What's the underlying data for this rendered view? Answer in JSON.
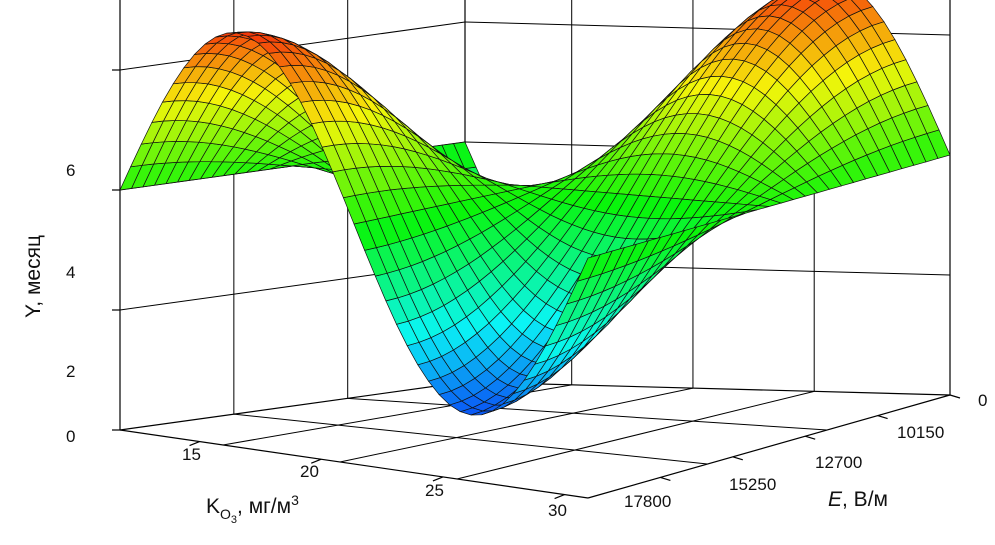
{
  "chart_data": {
    "type": "surface",
    "title": "",
    "zlabel": "Y, месяц",
    "zlim": [
      0,
      7.2
    ],
    "z_ticks": [
      "0",
      "2",
      "4",
      "6"
    ],
    "x_label": {
      "symbol": "K",
      "subscript": "O",
      "sub_subscript": "3",
      "units": ", мг/м",
      "superscript": "3"
    },
    "x_ticks": [
      "15",
      "20",
      "25",
      "30"
    ],
    "y_label": {
      "symbol": "E",
      "units": ", В/м"
    },
    "y_ticks": [
      "0",
      "10150",
      "12700",
      "15250",
      "17800"
    ],
    "grid": true,
    "colormap": "rainbow (blue low → red high)",
    "surface": {
      "description_units": "Y in months over K_O3 (mg/m3) and E (V/m)",
      "samples": [
        {
          "k_o3": 12,
          "e": 20000,
          "y": 4.0
        },
        {
          "k_o3": 17,
          "e": 20000,
          "y": 6.9
        },
        {
          "k_o3": 22,
          "e": 20000,
          "y": 4.0
        },
        {
          "k_o3": 27,
          "e": 20000,
          "y": 1.2
        },
        {
          "k_o3": 31,
          "e": 20000,
          "y": 4.0
        },
        {
          "k_o3": 22,
          "e": 10150,
          "y": 6.7
        },
        {
          "k_o3": 22,
          "e": 15250,
          "y": 1.5
        },
        {
          "k_o3": 12,
          "e": 0,
          "y": 4.0
        }
      ]
    }
  }
}
